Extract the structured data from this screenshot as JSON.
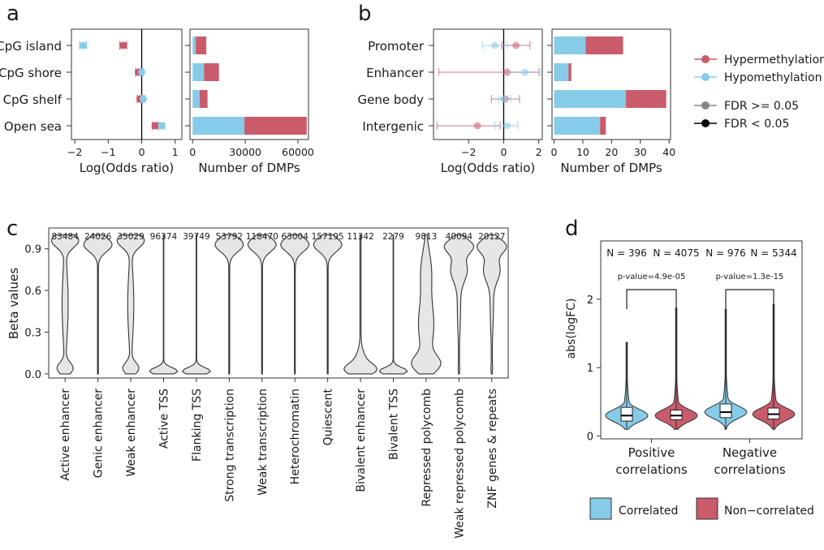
{
  "colors": {
    "hyper": "#c95b6b",
    "hypo": "#86cbe8",
    "frame": "#333333",
    "violin_fill": "#e6e6e6"
  },
  "panel_labels": [
    "a",
    "b",
    "c",
    "d"
  ],
  "chart_data": [
    {
      "id": "a-left",
      "type": "scatter",
      "categories": [
        "CpG island",
        "CpG shore",
        "CpG shelf",
        "Open sea"
      ],
      "xlabel": "Log(Odds ratio)",
      "xticks": [
        "−2",
        "−1",
        "0",
        "1"
      ],
      "xlim": [
        -2.1,
        1.2
      ],
      "series": [
        {
          "name": "Hypermethylation",
          "values": [
            -0.55,
            -0.1,
            -0.05,
            0.4
          ],
          "err": [
            0.1,
            0.08,
            0.08,
            0.08
          ]
        },
        {
          "name": "Hypomethylation",
          "values": [
            -1.75,
            0.0,
            0.05,
            0.6
          ],
          "err": [
            0.1,
            0.05,
            0.05,
            0.08
          ]
        }
      ]
    },
    {
      "id": "a-right",
      "type": "bar",
      "stacked": true,
      "categories": [
        "CpG island",
        "CpG shore",
        "CpG shelf",
        "Open sea"
      ],
      "xlabel": "Number of DMPs",
      "xticks": [
        "0",
        "30000",
        "60000"
      ],
      "xlim": [
        -1500,
        66000
      ],
      "series": [
        {
          "name": "Hypomethylation",
          "values": [
            1800,
            6500,
            4000,
            29500
          ]
        },
        {
          "name": "Hypermethylation",
          "values": [
            6000,
            8500,
            4500,
            35500
          ]
        }
      ]
    },
    {
      "id": "b-left",
      "type": "scatter",
      "categories": [
        "Promoter",
        "Enhancer",
        "Gene body",
        "Intergenic"
      ],
      "xlabel": "Log(Odds ratio)",
      "xticks": [
        "−2",
        "0",
        "2"
      ],
      "xlim": [
        -4,
        2.2
      ],
      "series": [
        {
          "name": "Hypermethylation",
          "values": [
            0.7,
            0.2,
            0.1,
            -1.5
          ],
          "lo": [
            -0.1,
            -3.7,
            -0.7,
            -3.8
          ],
          "hi": [
            1.5,
            2.0,
            0.9,
            -0.2
          ],
          "significant": [
            false,
            false,
            false,
            false
          ]
        },
        {
          "name": "Hypomethylation",
          "values": [
            -0.5,
            1.2,
            0.0,
            0.2
          ],
          "lo": [
            -1.2,
            0.2,
            -0.3,
            -0.5
          ],
          "hi": [
            0.2,
            2.1,
            0.4,
            0.8
          ],
          "significant": [
            false,
            false,
            false,
            false
          ]
        }
      ]
    },
    {
      "id": "b-right",
      "type": "bar",
      "stacked": true,
      "categories": [
        "Promoter",
        "Enhancer",
        "Gene body",
        "Intergenic"
      ],
      "xlabel": "Number of DMPs",
      "xticks": [
        "0",
        "10",
        "20",
        "30",
        "40"
      ],
      "xlim": [
        -0.7,
        40.5
      ],
      "series": [
        {
          "name": "Hypomethylation",
          "values": [
            11,
            5,
            25,
            16
          ]
        },
        {
          "name": "Hypermethylation",
          "values": [
            13,
            1,
            14,
            2
          ]
        }
      ]
    },
    {
      "id": "c",
      "type": "violin",
      "ylabel": "Beta values",
      "ylim": [
        -0.03,
        1.05
      ],
      "yticks": [
        "0.0",
        "0.3",
        "0.6",
        "0.9"
      ],
      "categories": [
        "Active enhancer",
        "Genic enhancer",
        "Weak enhancer",
        "Active TSS",
        "Flanking TSS",
        "Strong transcription",
        "Weak transcription",
        "Heterochromatin",
        "Quiescent",
        "Bivalent enhancer",
        "Bivalent TSS",
        "Repressed polycomb",
        "Weak repressed polycomb",
        "ZNF genes & repeats"
      ],
      "counts": [
        "83484",
        "24026",
        "35029",
        "96374",
        "39749",
        "53792",
        "118470",
        "63004",
        "157195",
        "11342",
        "2279",
        "9813",
        "40094",
        "20127"
      ],
      "shapes": [
        "bimodal",
        "high",
        "bimodal",
        "low",
        "low",
        "high",
        "high",
        "high",
        "high",
        "low_wide",
        "low",
        "mid",
        "high_wide",
        "high_wide"
      ]
    },
    {
      "id": "d",
      "type": "violin",
      "ylabel": "abs(logFC)",
      "ylim": [
        -0.04,
        2.85
      ],
      "yticks": [
        "0",
        "1",
        "2"
      ],
      "groups": [
        "Positive\ncorrelations",
        "Negative\ncorrelations"
      ],
      "group_lines": [
        [
          "Positive",
          "correlations"
        ],
        [
          "Negative",
          "correlations"
        ]
      ],
      "n_labels": [
        "N = 396",
        "N = 4075",
        "N = 976",
        "N = 5344"
      ],
      "pvalues": [
        "p-value=4.9e-05",
        "p-value=1.3e-15"
      ],
      "violins": [
        {
          "group": 0,
          "series": "Correlated",
          "median": 0.3,
          "q1": 0.22,
          "q3": 0.42,
          "min": 0.1,
          "max": 1.37
        },
        {
          "group": 0,
          "series": "Non−correlated",
          "median": 0.3,
          "q1": 0.24,
          "q3": 0.38,
          "min": 0.1,
          "max": 1.87
        },
        {
          "group": 1,
          "series": "Correlated",
          "median": 0.35,
          "q1": 0.27,
          "q3": 0.47,
          "min": 0.1,
          "max": 1.85
        },
        {
          "group": 1,
          "series": "Non−correlated",
          "median": 0.32,
          "q1": 0.25,
          "q3": 0.41,
          "min": 0.1,
          "max": 1.92
        }
      ]
    }
  ],
  "legend_ab": {
    "items": [
      "Hypermethylation",
      "Hypomethylation",
      "FDR >= 0.05",
      "FDR < 0.05"
    ]
  },
  "legend_d": {
    "items": [
      "Correlated",
      "Non−correlated"
    ]
  }
}
